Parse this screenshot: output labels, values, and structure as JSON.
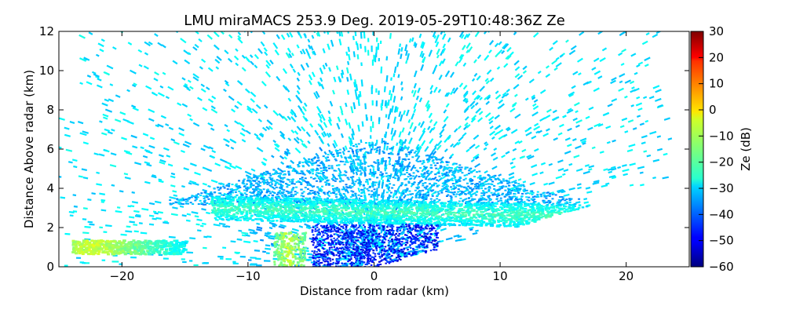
{
  "chart_data": {
    "type": "heatmap",
    "title": "LMU miraMACS 253.9 Deg. 2019-05-29T10:48:36Z  Ze",
    "xlabel": "Distance from radar (km)",
    "ylabel": "Distance Above radar  (km)",
    "xlim": [
      -25,
      25
    ],
    "ylim": [
      0,
      12
    ],
    "xticks": [
      -20,
      -10,
      0,
      10,
      20
    ],
    "yticks": [
      0,
      2,
      4,
      6,
      8,
      10,
      12
    ],
    "colorbar": {
      "label": "Ze (dB)",
      "colormap": "jet",
      "range": [
        -60,
        30
      ],
      "ticks": [
        30,
        20,
        10,
        0,
        -10,
        -20,
        -30,
        -40,
        -50,
        -60
      ]
    },
    "field": {
      "description_levels_dB": {
        "background_noise": -28,
        "melting_layer_band_2_to_3_km": -20,
        "low_level_near_radar": -50,
        "strong_echo_near_x_-22_y_1": -8,
        "strong_echo_near_x_-7_y_1": -10
      }
    },
    "grid": false
  }
}
